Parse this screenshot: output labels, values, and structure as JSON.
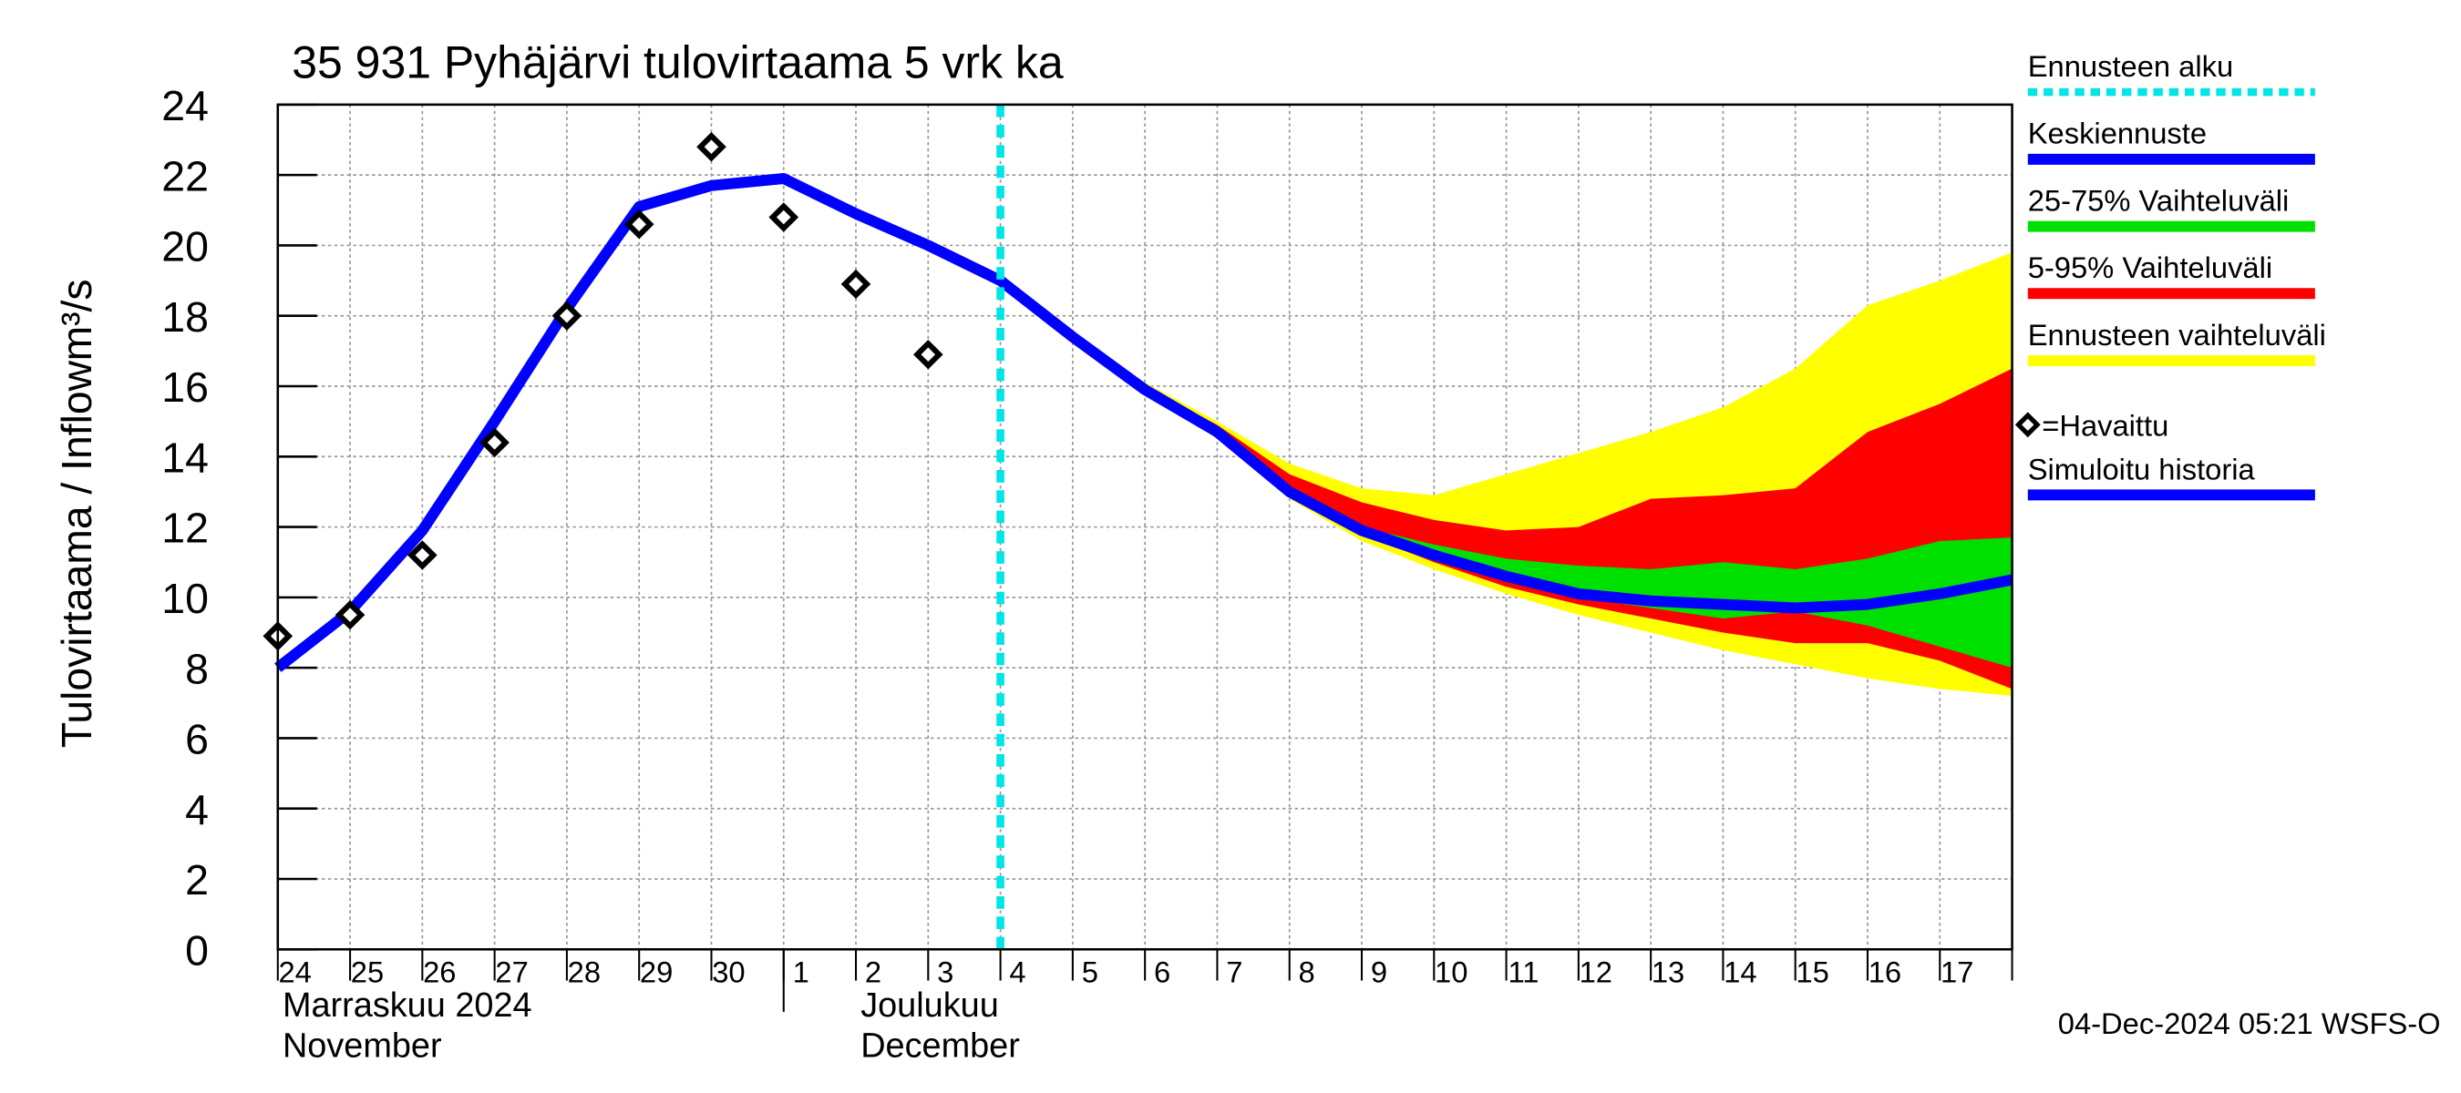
{
  "chart_data": {
    "type": "line",
    "title": "35 931 Pyhäjärvi tulovirtaama 5 vrk ka",
    "ylabel": "Tulovirtaama / Inflow",
    "yunit": "m³/s",
    "x": [
      "24",
      "25",
      "26",
      "27",
      "28",
      "29",
      "30",
      "1",
      "2",
      "3",
      "4",
      "5",
      "6",
      "7",
      "8",
      "9",
      "10",
      "11",
      "12",
      "13",
      "14",
      "15",
      "16",
      "17",
      null
    ],
    "months": [
      {
        "fi": "Marraskuu 2024",
        "en": "November"
      },
      {
        "fi": "Joulukuu",
        "en": "December"
      }
    ],
    "ylim": [
      0,
      24
    ],
    "yticks": [
      0,
      2,
      4,
      6,
      8,
      10,
      12,
      14,
      16,
      18,
      20,
      22,
      24
    ],
    "grid": true,
    "timestamp": "04-Dec-2024 05:21 WSFS-O",
    "forecast_start": {
      "name": "Ennusteen alku",
      "color": "#00e5e5",
      "index": 10
    },
    "bands": [
      {
        "name": "Ennusteen vaihteluväli",
        "color": "#ffff00",
        "upper": [
          null,
          null,
          null,
          null,
          null,
          null,
          null,
          null,
          null,
          null,
          19.0,
          17.4,
          16.1,
          15.0,
          13.8,
          13.1,
          12.9,
          13.5,
          14.1,
          14.7,
          15.4,
          16.5,
          18.3,
          19.0,
          19.8
        ],
        "lower": [
          null,
          null,
          null,
          null,
          null,
          null,
          null,
          null,
          null,
          null,
          19.0,
          17.4,
          15.9,
          14.5,
          12.8,
          11.6,
          10.8,
          10.1,
          9.5,
          9.0,
          8.5,
          8.1,
          7.7,
          7.4,
          7.2
        ]
      },
      {
        "name": "5-95% Vaihteluväli",
        "color": "#ff0000",
        "upper": [
          null,
          null,
          null,
          null,
          null,
          null,
          null,
          null,
          null,
          null,
          19.0,
          17.4,
          16.0,
          14.9,
          13.5,
          12.7,
          12.2,
          11.9,
          12.0,
          12.8,
          12.9,
          13.1,
          14.7,
          15.5,
          16.5
        ],
        "lower": [
          null,
          null,
          null,
          null,
          null,
          null,
          null,
          null,
          null,
          null,
          19.0,
          17.4,
          15.9,
          14.6,
          12.9,
          11.8,
          11.0,
          10.3,
          9.8,
          9.4,
          9.0,
          8.7,
          8.7,
          8.2,
          7.4
        ]
      },
      {
        "name": "25-75% Vaihteluväli",
        "color": "#00e000",
        "upper": [
          null,
          null,
          null,
          null,
          null,
          null,
          null,
          null,
          null,
          null,
          19.0,
          17.4,
          15.9,
          14.7,
          13.0,
          12.0,
          11.5,
          11.1,
          10.9,
          10.8,
          11.0,
          10.8,
          11.1,
          11.6,
          11.7
        ],
        "lower": [
          null,
          null,
          null,
          null,
          null,
          null,
          null,
          null,
          null,
          null,
          19.0,
          17.4,
          15.9,
          14.7,
          13.0,
          11.9,
          11.1,
          10.5,
          10.0,
          9.7,
          9.4,
          9.6,
          9.2,
          8.6,
          8.0
        ]
      }
    ],
    "series": [
      {
        "name": "Keskiennuste",
        "color": "#0000ff",
        "kind": "line",
        "values": [
          null,
          null,
          null,
          null,
          null,
          null,
          null,
          null,
          null,
          null,
          19.0,
          17.4,
          15.9,
          14.7,
          13.0,
          11.9,
          11.2,
          10.6,
          10.1,
          9.9,
          9.8,
          9.7,
          9.8,
          10.1,
          10.5
        ]
      },
      {
        "name": "=Havaittu",
        "color": "#000000",
        "kind": "marker",
        "values": [
          8.9,
          9.5,
          11.2,
          14.4,
          18.0,
          20.6,
          22.8,
          20.8,
          18.9,
          16.9,
          null,
          null,
          null,
          null,
          null,
          null,
          null,
          null,
          null,
          null,
          null,
          null,
          null,
          null,
          null
        ]
      },
      {
        "name": "Simuloitu historia",
        "color": "#0000ff",
        "kind": "line",
        "values": [
          8.0,
          9.6,
          11.9,
          15.0,
          18.2,
          21.1,
          21.7,
          21.9,
          20.9,
          20.0,
          19.0,
          null,
          null,
          null,
          null,
          null,
          null,
          null,
          null,
          null,
          null,
          null,
          null,
          null,
          null
        ]
      }
    ]
  }
}
